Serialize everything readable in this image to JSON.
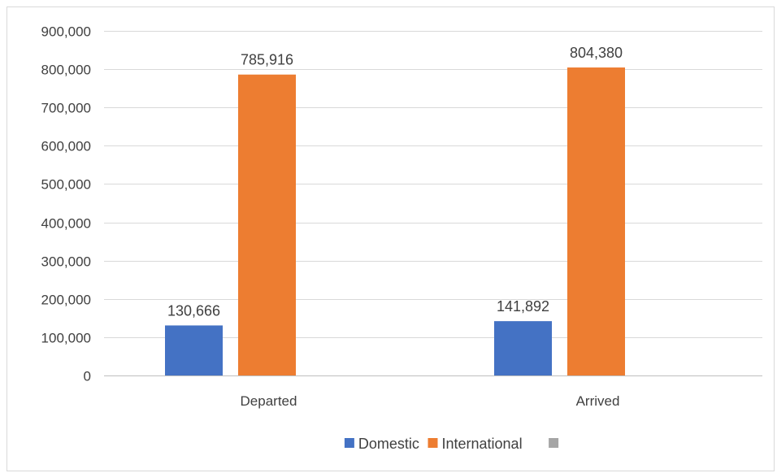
{
  "chart_data": {
    "type": "bar",
    "categories": [
      "Departed",
      "Arrived"
    ],
    "series": [
      {
        "name": "Domestic",
        "color": "#4472C4",
        "values": [
          130666,
          141892
        ],
        "labels": [
          "130,666",
          "141,892"
        ]
      },
      {
        "name": "International",
        "color": "#ED7D31",
        "values": [
          785916,
          804380
        ],
        "labels": [
          "785,916",
          "804,380"
        ]
      },
      {
        "name": "",
        "color": "#A5A5A5",
        "values": [
          null,
          null
        ],
        "labels": [
          "",
          ""
        ]
      }
    ],
    "ylim": [
      0,
      900000
    ],
    "y_ticks": [
      0,
      100000,
      200000,
      300000,
      400000,
      500000,
      600000,
      700000,
      800000,
      900000
    ],
    "y_tick_labels": [
      "0",
      "100,000",
      "200,000",
      "300,000",
      "400,000",
      "500,000",
      "600,000",
      "700,000",
      "800,000",
      "900,000"
    ],
    "grid": true,
    "legend": "bottom",
    "title": "",
    "xlabel": "",
    "ylabel": ""
  }
}
